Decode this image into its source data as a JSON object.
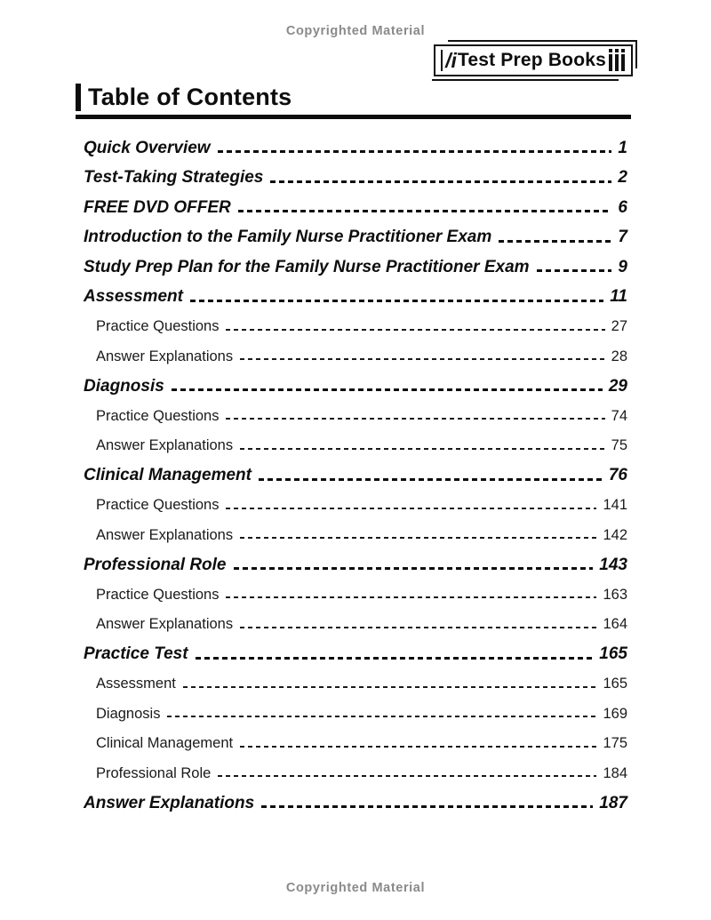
{
  "copyright_top": "Copyrighted Material",
  "copyright_bottom": "Copyrighted Material",
  "logo": {
    "mark": "/i",
    "text": "Test Prep Books",
    "spines_icon": "three-book-spines"
  },
  "title": "Table of Contents",
  "colors": {
    "text": "#0d0d0d",
    "muted_gray": "#8a8a8a"
  },
  "toc": [
    {
      "label": "Quick Overview",
      "page": "1",
      "level": "main"
    },
    {
      "label": "Test-Taking Strategies",
      "page": "2",
      "level": "main"
    },
    {
      "label": "FREE DVD OFFER",
      "page": "6",
      "level": "main"
    },
    {
      "label": "Introduction to the Family Nurse Practitioner Exam",
      "page": "7",
      "level": "main"
    },
    {
      "label": "Study Prep Plan for the Family Nurse Practitioner Exam",
      "page": "9",
      "level": "main"
    },
    {
      "label": "Assessment",
      "page": "11",
      "level": "main"
    },
    {
      "label": "Practice Questions",
      "page": "27",
      "level": "sub"
    },
    {
      "label": "Answer Explanations",
      "page": "28",
      "level": "sub"
    },
    {
      "label": "Diagnosis",
      "page": "29",
      "level": "main"
    },
    {
      "label": "Practice Questions",
      "page": "74",
      "level": "sub"
    },
    {
      "label": "Answer Explanations",
      "page": "75",
      "level": "sub"
    },
    {
      "label": "Clinical Management",
      "page": "76",
      "level": "main"
    },
    {
      "label": "Practice Questions",
      "page": "141",
      "level": "sub"
    },
    {
      "label": "Answer Explanations",
      "page": "142",
      "level": "sub"
    },
    {
      "label": "Professional Role",
      "page": "143",
      "level": "main"
    },
    {
      "label": "Practice Questions",
      "page": "163",
      "level": "sub"
    },
    {
      "label": "Answer Explanations",
      "page": "164",
      "level": "sub"
    },
    {
      "label": "Practice Test",
      "page": "165",
      "level": "main"
    },
    {
      "label": "Assessment",
      "page": "165",
      "level": "sub"
    },
    {
      "label": "Diagnosis",
      "page": "169",
      "level": "sub"
    },
    {
      "label": "Clinical Management",
      "page": "175",
      "level": "sub"
    },
    {
      "label": "Professional Role",
      "page": "184",
      "level": "sub"
    },
    {
      "label": "Answer Explanations",
      "page": "187",
      "level": "main"
    }
  ]
}
